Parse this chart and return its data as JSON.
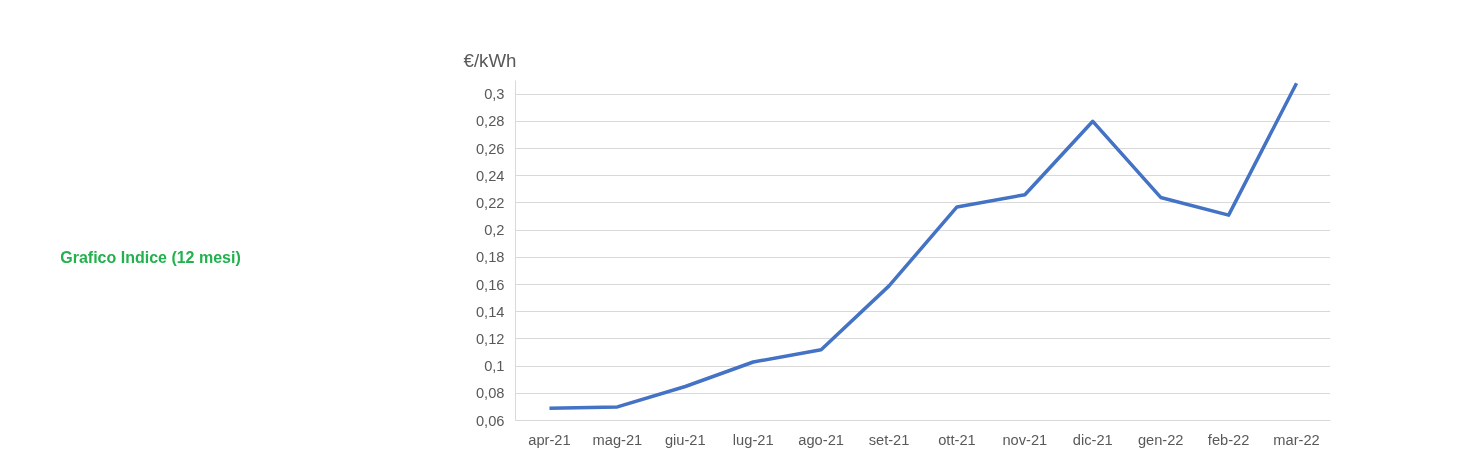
{
  "chart_data": {
    "type": "line",
    "ylabel": "€/kWh",
    "annotations": [
      "Grafico Indice (12 mesi)"
    ],
    "categories": [
      "apr-21",
      "mag-21",
      "giu-21",
      "lug-21",
      "ago-21",
      "set-21",
      "ott-21",
      "nov-21",
      "dic-21",
      "gen-22",
      "feb-22",
      "mar-22"
    ],
    "series": [
      {
        "color": "#4472c4",
        "values": [
          0.069,
          0.07,
          0.085,
          0.103,
          0.112,
          0.159,
          0.217,
          0.226,
          0.28,
          0.224,
          0.211,
          0.308
        ]
      }
    ],
    "ylim": [
      0.06,
      0.31
    ],
    "yticks": [
      {
        "value": 0.06,
        "label": "0,06"
      },
      {
        "value": 0.08,
        "label": "0,08"
      },
      {
        "value": 0.1,
        "label": "0,1"
      },
      {
        "value": 0.12,
        "label": "0,12"
      },
      {
        "value": 0.14,
        "label": "0,14"
      },
      {
        "value": 0.16,
        "label": "0,16"
      },
      {
        "value": 0.18,
        "label": "0,18"
      },
      {
        "value": 0.2,
        "label": "0,2"
      },
      {
        "value": 0.22,
        "label": "0,22"
      },
      {
        "value": 0.24,
        "label": "0,24"
      },
      {
        "value": 0.26,
        "label": "0,26"
      },
      {
        "value": 0.28,
        "label": "0,28"
      },
      {
        "value": 0.3,
        "label": "0,3"
      }
    ],
    "grid": "y",
    "marker": "none",
    "line_style": "solid"
  }
}
